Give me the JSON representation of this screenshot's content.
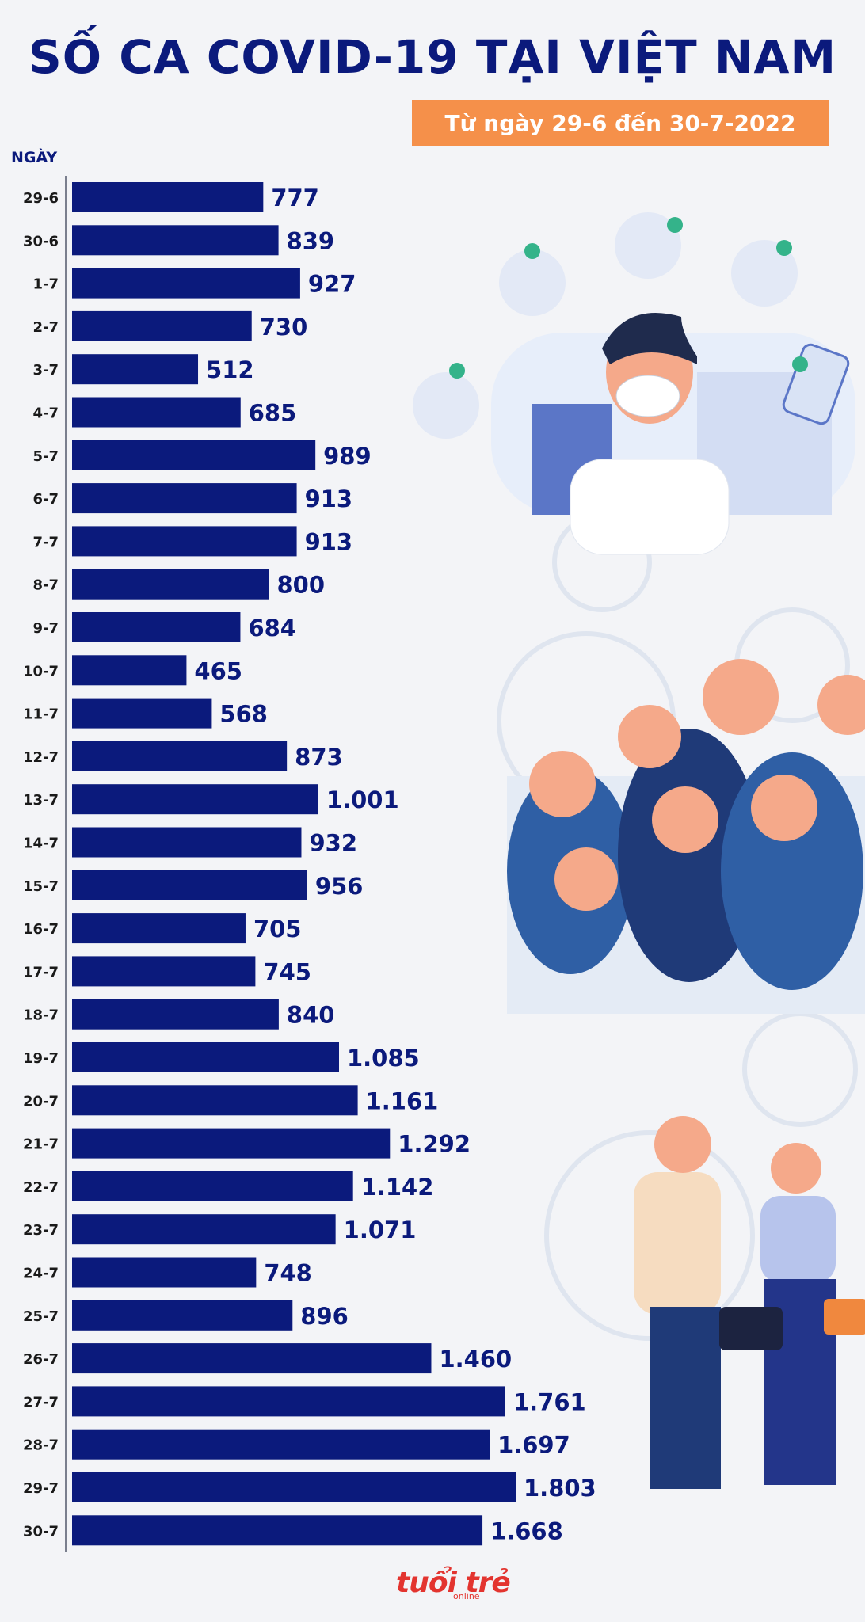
{
  "header": {
    "title": "SỐ CA COVID-19 TẠI VIỆT NAM",
    "subtitle": "Từ ngày 29-6 đến 30-7-2022",
    "axis_heading": "NGÀY"
  },
  "footer": {
    "logo_text": "tuổi trẻ",
    "logo_sub": "online"
  },
  "colors": {
    "bar": "#0b1a7c",
    "label": "#0b1a7c",
    "badge": "#f5904a",
    "check": "#34b38a"
  },
  "chart_data": {
    "type": "bar",
    "orientation": "horizontal",
    "title": "SỐ CA COVID-19 TẠI VIỆT NAM",
    "subtitle": "Từ ngày 29-6 đến 30-7-2022",
    "ylabel": "NGÀY",
    "xlim": [
      0,
      1803
    ],
    "grid": false,
    "categories": [
      "29-6",
      "30-6",
      "1-7",
      "2-7",
      "3-7",
      "4-7",
      "5-7",
      "6-7",
      "7-7",
      "8-7",
      "9-7",
      "10-7",
      "11-7",
      "12-7",
      "13-7",
      "14-7",
      "15-7",
      "16-7",
      "17-7",
      "18-7",
      "19-7",
      "20-7",
      "21-7",
      "22-7",
      "23-7",
      "24-7",
      "25-7",
      "26-7",
      "27-7",
      "28-7",
      "29-7",
      "30-7"
    ],
    "values": [
      777,
      839,
      927,
      730,
      512,
      685,
      989,
      913,
      913,
      800,
      684,
      465,
      568,
      873,
      1001,
      932,
      956,
      705,
      745,
      840,
      1085,
      1161,
      1292,
      1142,
      1071,
      748,
      896,
      1460,
      1761,
      1697,
      1803,
      1668
    ],
    "value_labels": [
      "777",
      "839",
      "927",
      "730",
      "512",
      "685",
      "989",
      "913",
      "913",
      "800",
      "684",
      "465",
      "568",
      "873",
      "1.001",
      "932",
      "956",
      "705",
      "745",
      "840",
      "1.085",
      "1.161",
      "1.292",
      "1.142",
      "1.071",
      "748",
      "896",
      "1.460",
      "1.761",
      "1.697",
      "1.803",
      "1.668"
    ]
  }
}
